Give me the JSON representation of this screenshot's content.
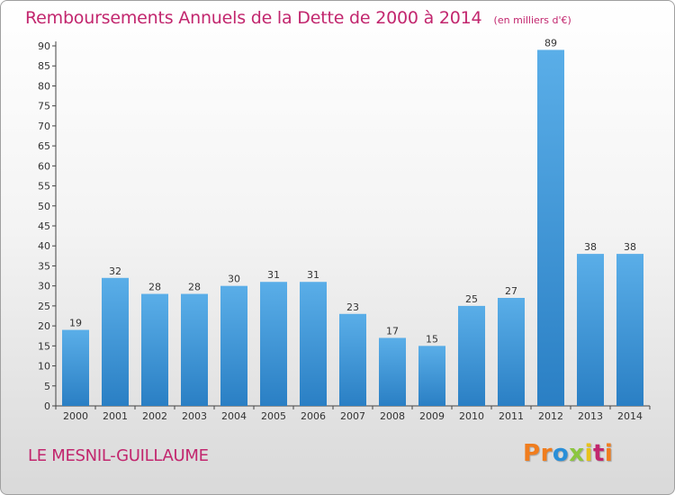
{
  "header": {
    "title": "Remboursements Annuels de la Dette de 2000 à 2014",
    "unit": "(en milliers d'€)"
  },
  "footer": {
    "commune": "LE MESNIL-GUILLAUME",
    "brand": "Proxiti",
    "brand_letters": [
      {
        "char": "P",
        "color": "#f07d1e"
      },
      {
        "char": "r",
        "color": "#f07d1e"
      },
      {
        "char": "o",
        "color": "#2a8fd8"
      },
      {
        "char": "x",
        "color": "#8cc63f"
      },
      {
        "char": "i",
        "color": "#e8c21a"
      },
      {
        "char": "t",
        "color": "#c2266e"
      },
      {
        "char": "i",
        "color": "#f07d1e"
      }
    ]
  },
  "colors": {
    "accent": "#c2266e",
    "bar_top": "#5aaee8",
    "bar_bottom": "#2a7fc4"
  },
  "chart_data": {
    "type": "bar",
    "title": "Remboursements Annuels de la Dette de 2000 à 2014",
    "ylabel": "en milliers d'€",
    "xlabel": "",
    "categories": [
      "2000",
      "2001",
      "2002",
      "2003",
      "2004",
      "2005",
      "2006",
      "2007",
      "2008",
      "2009",
      "2010",
      "2011",
      "2012",
      "2013",
      "2014"
    ],
    "values": [
      19,
      32,
      28,
      28,
      30,
      31,
      31,
      23,
      17,
      15,
      25,
      27,
      89,
      38,
      38
    ],
    "ylim": [
      0,
      90
    ],
    "yticks": [
      0,
      5,
      10,
      15,
      20,
      25,
      30,
      35,
      40,
      45,
      50,
      55,
      60,
      65,
      70,
      75,
      80,
      85,
      90
    ],
    "grid": false,
    "legend": "none"
  }
}
